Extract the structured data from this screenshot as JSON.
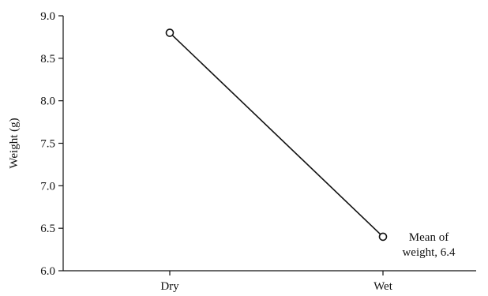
{
  "chart_data": {
    "type": "line",
    "title": "",
    "xlabel": "",
    "ylabel": "Weight (g)",
    "categories": [
      "Dry",
      "Wet"
    ],
    "series": [
      {
        "values": [
          8.8,
          6.4
        ],
        "marker": "open-circle",
        "color": "#111111"
      }
    ],
    "ylim": [
      6.0,
      9.0
    ],
    "yticks": [
      "6.0",
      "6.5",
      "7.0",
      "7.5",
      "8.0",
      "8.5",
      "9.0"
    ],
    "grid": false,
    "legend": "none",
    "annotations": [
      {
        "category": "Wet",
        "lines": [
          "Mean of",
          "weight, 6.4"
        ]
      }
    ]
  }
}
